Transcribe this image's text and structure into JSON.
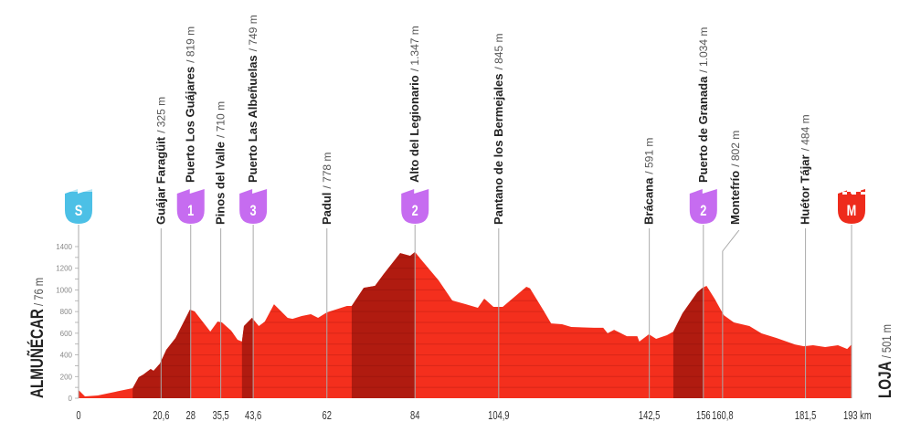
{
  "chart_data": {
    "type": "area",
    "title": "",
    "xlabel": "",
    "ylabel": "",
    "x_unit": "km",
    "xlim": [
      0,
      193
    ],
    "ylim": [
      0,
      1400
    ],
    "y_ticks": [
      0,
      200,
      400,
      600,
      800,
      1000,
      1200,
      1400
    ],
    "grid": true,
    "colors": {
      "profile": "#f42f1d",
      "climb": "#b01b10",
      "start": "#4cc0e6",
      "climb_badge": "#c66cf0",
      "finish": "#ee2b1c",
      "line": "#aaaaaa"
    },
    "start": {
      "name": "ALMUÑÉCAR",
      "alt": "/ 76 m",
      "badge": "S"
    },
    "finish": {
      "name": "LOJA",
      "alt": "/ 501 m",
      "badge": "M"
    },
    "profile": [
      [
        0,
        76
      ],
      [
        1.6,
        17
      ],
      [
        4.8,
        25
      ],
      [
        13.5,
        93
      ],
      [
        15,
        194
      ],
      [
        16.2,
        219
      ],
      [
        18,
        270
      ],
      [
        18.7,
        253
      ],
      [
        20.3,
        320
      ],
      [
        21.9,
        447
      ],
      [
        24.2,
        556
      ],
      [
        27.8,
        818
      ],
      [
        29,
        801
      ],
      [
        32.9,
        616
      ],
      [
        34.7,
        708
      ],
      [
        35.8,
        700
      ],
      [
        38.1,
        624
      ],
      [
        39.7,
        540
      ],
      [
        40.8,
        523
      ],
      [
        41.3,
        666
      ],
      [
        43.3,
        742
      ],
      [
        45,
        666
      ],
      [
        46.5,
        708
      ],
      [
        48.8,
        868
      ],
      [
        52.2,
        742
      ],
      [
        53.4,
        733
      ],
      [
        55.7,
        759
      ],
      [
        58,
        776
      ],
      [
        59.8,
        742
      ],
      [
        62,
        793
      ],
      [
        67,
        852
      ],
      [
        68.2,
        852
      ],
      [
        71.2,
        1020
      ],
      [
        74,
        1037
      ],
      [
        76.2,
        1147
      ],
      [
        80.3,
        1340
      ],
      [
        82.8,
        1315
      ],
      [
        84,
        1350
      ],
      [
        85.3,
        1290
      ],
      [
        89.9,
        1088
      ],
      [
        93.3,
        902
      ],
      [
        96.7,
        868
      ],
      [
        99.7,
        835
      ],
      [
        101.3,
        919
      ],
      [
        103.6,
        843
      ],
      [
        105.9,
        843
      ],
      [
        107.2,
        885
      ],
      [
        111.8,
        1029
      ],
      [
        112.7,
        1015
      ],
      [
        116.1,
        810
      ],
      [
        118,
        691
      ],
      [
        120.7,
        683
      ],
      [
        123,
        658
      ],
      [
        128.7,
        650
      ],
      [
        131,
        650
      ],
      [
        132.1,
        600
      ],
      [
        133.7,
        632
      ],
      [
        136.9,
        573
      ],
      [
        139.5,
        573
      ],
      [
        140,
        523
      ],
      [
        142.4,
        590
      ],
      [
        144.2,
        548
      ],
      [
        146.9,
        582
      ],
      [
        148.5,
        615
      ],
      [
        150.8,
        784
      ],
      [
        154.5,
        978
      ],
      [
        155.8,
        1020
      ],
      [
        156.8,
        1037
      ],
      [
        158.8,
        919
      ],
      [
        161.1,
        767
      ],
      [
        163.6,
        700
      ],
      [
        167.5,
        666
      ],
      [
        170.5,
        599
      ],
      [
        174.3,
        556
      ],
      [
        178.8,
        497
      ],
      [
        181.1,
        480
      ],
      [
        183.4,
        489
      ],
      [
        186.4,
        472
      ],
      [
        189.6,
        489
      ],
      [
        191.9,
        455
      ],
      [
        193,
        497
      ]
    ],
    "climb_sections": [
      [
        13.5,
        28
      ],
      [
        40.8,
        43.6
      ],
      [
        68.2,
        84
      ],
      [
        148.5,
        156
      ]
    ],
    "points": [
      {
        "km": "20,6",
        "x": 20.6,
        "name": "Guájar Faragüit",
        "alt": "/ 325 m"
      },
      {
        "km": "28",
        "x": 28,
        "name": "Puerto Los Guájares",
        "alt": "/ 819 m",
        "badge": "1"
      },
      {
        "km": "35,5",
        "x": 35.5,
        "name": "Pinos del Valle",
        "alt": "/ 710 m"
      },
      {
        "km": "43,6",
        "x": 43.6,
        "name": "Puerto Las Albeñuelas",
        "alt": "/ 749 m",
        "badge": "3"
      },
      {
        "km": "62",
        "x": 62,
        "name": "Padul",
        "alt": "/ 778 m"
      },
      {
        "km": "84",
        "x": 84,
        "name": "Alto del Legionario",
        "alt": "/ 1.347 m",
        "badge": "2"
      },
      {
        "km": "104,9",
        "x": 104.9,
        "name": "Pantano de los Bermejales",
        "alt": "/ 845 m"
      },
      {
        "km": "142,5",
        "x": 142.5,
        "name": "Brácana",
        "alt": "/ 591 m"
      },
      {
        "km": "156",
        "x": 156,
        "name": "Puerto de Granada",
        "alt": "/ 1.034 m",
        "badge": "2"
      },
      {
        "km": "160,8",
        "x": 160.8,
        "name": "Montefrío",
        "alt": "/ 802 m",
        "offset": true
      },
      {
        "km": "181,5",
        "x": 181.5,
        "name": "Huétor Tájar",
        "alt": "/ 484 m"
      }
    ],
    "x_start_label": "0",
    "x_end_label": "193 km"
  }
}
